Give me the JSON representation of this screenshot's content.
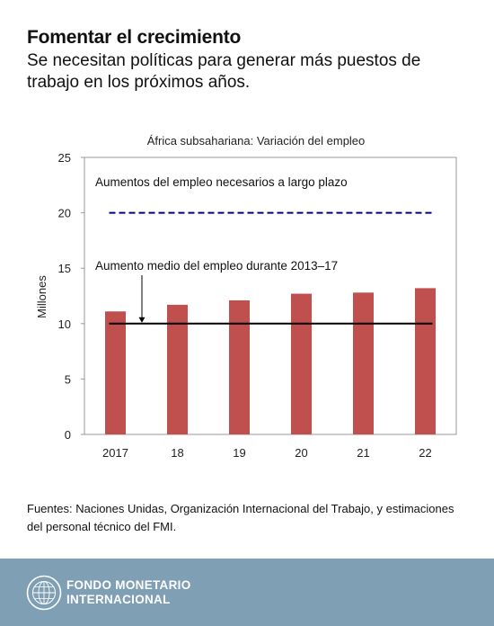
{
  "header": {
    "title": "Fomentar el crecimiento",
    "subtitle": "Se necesitan políticas para generar más puestos de trabajo en los próximos años."
  },
  "chart_data": {
    "type": "bar",
    "title": "África subsahariana: Variación del empleo",
    "ylabel": "Millones",
    "xlabel": "",
    "categories": [
      "2017",
      "18",
      "19",
      "20",
      "21",
      "22"
    ],
    "values": [
      11.1,
      11.7,
      12.1,
      12.7,
      12.8,
      13.2
    ],
    "ylim": [
      0,
      25
    ],
    "yticks": [
      0,
      5,
      10,
      15,
      20,
      25
    ],
    "grid": false,
    "bar_color": "#c0504d",
    "reference_lines": [
      {
        "label": "Aumentos del empleo necesarios a largo plazo",
        "value": 20,
        "style": "dashed",
        "color": "#00008b"
      },
      {
        "label": "Aumento medio del empleo durante 2013–17",
        "value": 10,
        "style": "solid",
        "color": "#000000"
      }
    ]
  },
  "source": {
    "text": "Fuentes: Naciones Unidas, Organización Internacional del Trabajo, y estimaciones del personal técnico del FMI."
  },
  "footer": {
    "logo_line1": "FONDO MONETARIO",
    "logo_line2": "INTERNACIONAL",
    "logo_icon": "imf-seal-icon",
    "bg_color": "#7f9fb5"
  }
}
